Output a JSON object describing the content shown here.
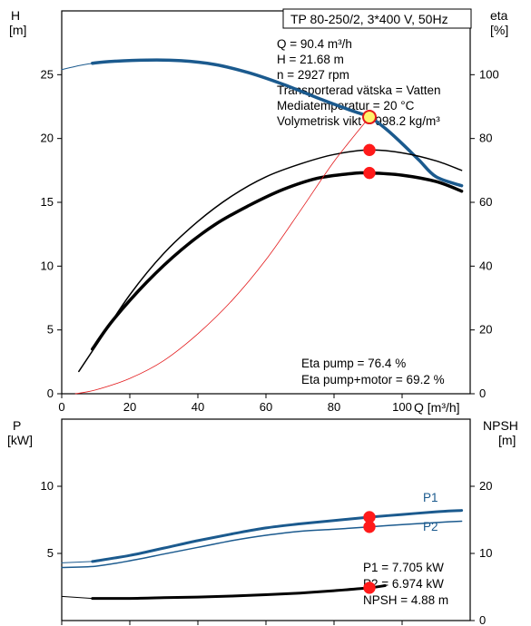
{
  "chart_data": [
    {
      "type": "line",
      "title": "TP 80-250/2, 3*400 V, 50Hz",
      "ylabel_left": [
        "H",
        "[m]"
      ],
      "ylabel_right": [
        "eta",
        "[%]"
      ],
      "xlabel": "Q [m³/h]",
      "xlim": [
        0,
        120
      ],
      "ylim_left": [
        0,
        30
      ],
      "ylim_right": [
        0,
        120
      ],
      "x_ticks": [
        "0",
        "20",
        "40",
        "60",
        "80",
        "100"
      ],
      "y_ticks_left": [
        "0",
        "5",
        "10",
        "15",
        "20",
        "25"
      ],
      "y_ticks_right": [
        "0",
        "20",
        "40",
        "60",
        "80",
        "100"
      ],
      "info_lines": [
        "Q = 90.4 m³/h",
        "H = 21.68 m",
        "n = 2927 rpm",
        "Transporterad vätska = Vatten",
        "Mediatemperatur = 20 °C",
        "Volymetrisk vikt = 998.2 kg/m³"
      ],
      "eta_lines": [
        "Eta pump = 76.4 %",
        "Eta pump+motor = 69.2 %"
      ],
      "series": [
        {
          "axis": "left",
          "color": "#1b5a8e",
          "width": 3.5,
          "x": [
            9,
            15,
            25,
            35,
            45,
            55,
            65,
            75,
            85,
            90.4,
            95,
            100,
            105,
            110,
            117.5
          ],
          "values": [
            25.9,
            26.05,
            26.15,
            26.1,
            25.8,
            25.15,
            24.25,
            23.2,
            22.2,
            21.68,
            20.8,
            19.6,
            18.3,
            17.0,
            16.3
          ]
        },
        {
          "axis": "left",
          "color": "#1b5a8e",
          "width": 1,
          "x": [
            0,
            4,
            9
          ],
          "values": [
            25.4,
            25.65,
            25.9
          ]
        },
        {
          "axis": "right",
          "color": "#000000",
          "width": 1.5,
          "x": [
            5,
            10,
            20,
            30,
            40,
            50,
            60,
            70,
            80,
            90.4,
            100,
            110,
            117.5
          ],
          "values": [
            7,
            15,
            31,
            44,
            54,
            62,
            68,
            72,
            75,
            76.4,
            75.5,
            73,
            70
          ]
        },
        {
          "axis": "right",
          "color": "#000000",
          "width": 3.5,
          "x": [
            9,
            15,
            25,
            35,
            45,
            55,
            65,
            75,
            85,
            90.4,
            100,
            110,
            117.5
          ],
          "values": [
            14,
            23,
            35,
            45,
            53,
            59,
            64,
            67.5,
            69,
            69.2,
            68.5,
            66.5,
            63.5
          ]
        },
        {
          "axis": "left",
          "color": "#e31a1c",
          "width": 0.8,
          "x": [
            4,
            10,
            20,
            30,
            40,
            50,
            60,
            70,
            80,
            90.4
          ],
          "values": [
            0,
            0.3,
            1.2,
            2.6,
            4.7,
            7.3,
            10.5,
            14.3,
            18.2,
            21.68
          ]
        }
      ],
      "points": [
        {
          "axis": "left",
          "x": 90.4,
          "value": 21.68,
          "style": "operating"
        },
        {
          "axis": "right",
          "x": 90.4,
          "value": 76.4,
          "style": "red"
        },
        {
          "axis": "right",
          "x": 90.4,
          "value": 69.2,
          "style": "red"
        }
      ]
    },
    {
      "type": "line",
      "ylabel_left": [
        "P",
        "[kW]"
      ],
      "ylabel_right": [
        "NPSH",
        "[m]"
      ],
      "xlim": [
        0,
        120
      ],
      "ylim_left": [
        0,
        15
      ],
      "ylim_right": [
        0,
        30
      ],
      "y_ticks_left": [
        "5",
        "10"
      ],
      "y_ticks_right": [
        "0",
        "10",
        "20"
      ],
      "info_lines": [
        "P1 = 7.705 kW",
        "P2 = 6.974 kW",
        "NPSH = 4.88 m"
      ],
      "series": [
        {
          "name": "P1",
          "axis": "left",
          "color": "#1b5a8e",
          "width": 3,
          "x": [
            9,
            20,
            30,
            40,
            50,
            60,
            70,
            80,
            90.4,
            100,
            110,
            117.5
          ],
          "values": [
            4.4,
            4.85,
            5.4,
            5.95,
            6.45,
            6.9,
            7.2,
            7.45,
            7.705,
            7.9,
            8.1,
            8.2
          ]
        },
        {
          "axis": "left",
          "color": "#1b5a8e",
          "width": 1,
          "x": [
            0,
            9
          ],
          "values": [
            4.3,
            4.4
          ]
        },
        {
          "name": "P2",
          "axis": "left",
          "color": "#1b5a8e",
          "width": 1.5,
          "x": [
            0,
            10,
            20,
            30,
            40,
            50,
            60,
            70,
            80,
            90.4,
            100,
            110,
            117.5
          ],
          "values": [
            3.95,
            4.05,
            4.45,
            4.95,
            5.45,
            5.95,
            6.35,
            6.65,
            6.8,
            6.974,
            7.15,
            7.3,
            7.4
          ]
        },
        {
          "axis": "right",
          "color": "#000000",
          "width": 3,
          "x": [
            9,
            20,
            30,
            40,
            50,
            60,
            70,
            80,
            90.4,
            95
          ],
          "values": [
            3.3,
            3.3,
            3.4,
            3.5,
            3.65,
            3.85,
            4.1,
            4.45,
            4.88,
            5.2
          ]
        },
        {
          "axis": "right",
          "color": "#000000",
          "width": 1,
          "x": [
            0,
            9
          ],
          "values": [
            3.6,
            3.3
          ]
        }
      ],
      "points": [
        {
          "axis": "left",
          "x": 90.4,
          "value": 7.705,
          "style": "red"
        },
        {
          "axis": "left",
          "x": 90.4,
          "value": 6.974,
          "style": "red"
        },
        {
          "axis": "right",
          "x": 90.4,
          "value": 4.88,
          "style": "red"
        }
      ]
    }
  ]
}
